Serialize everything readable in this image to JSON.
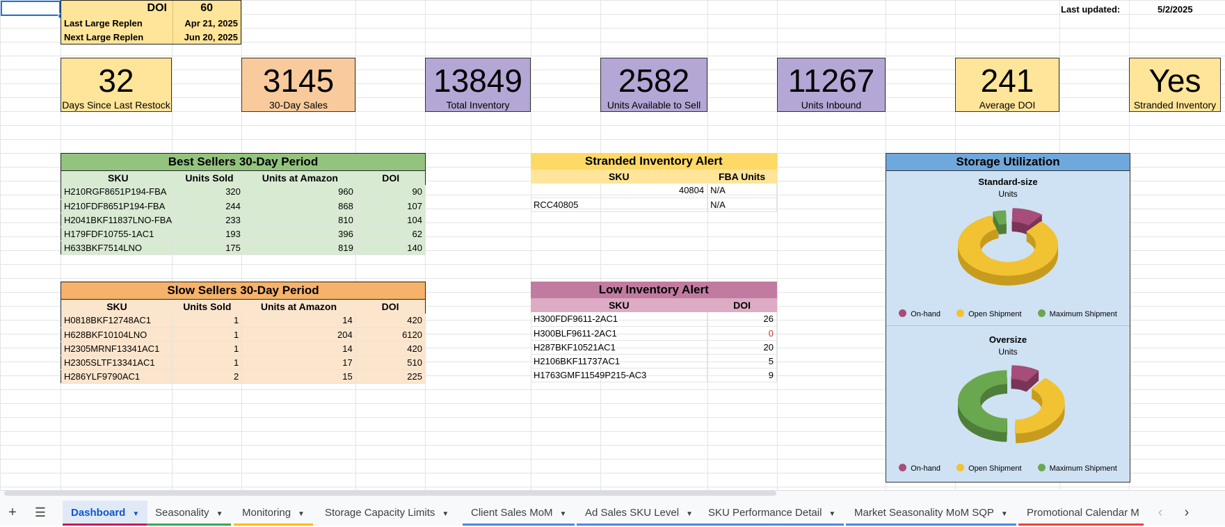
{
  "doi_box": {
    "doi_label": "DOI",
    "doi_value": "60",
    "last_label": "Last Large Replen",
    "last_value": "Apr 21, 2025",
    "next_label": "Next Large Replen",
    "next_value": "Jun 20, 2025"
  },
  "last_updated": {
    "label": "Last updated:",
    "value": "5/2/2025"
  },
  "kpis": [
    {
      "value": "32",
      "label": "Days Since Last Restock",
      "color": "#ffe599"
    },
    {
      "value": "3145",
      "label": "30-Day Sales",
      "color": "#f9cb9c"
    },
    {
      "value": "13849",
      "label": "Total Inventory",
      "color": "#b4a7d6"
    },
    {
      "value": "2582",
      "label": "Units Available to Sell",
      "color": "#b4a7d6"
    },
    {
      "value": "11267",
      "label": "Units Inbound",
      "color": "#b4a7d6"
    },
    {
      "value": "241",
      "label": "Average DOI",
      "color": "#ffe599"
    },
    {
      "value": "Yes",
      "label": "Stranded Inventory",
      "color": "#ffe599"
    }
  ],
  "best_sellers": {
    "title": "Best Sellers 30-Day Period",
    "headers": [
      "SKU",
      "Units Sold",
      "Units at Amazon",
      "DOI"
    ],
    "rows": [
      [
        "H210RGF8651P194-FBA",
        "320",
        "960",
        "90"
      ],
      [
        "H210FDF8651P194-FBA",
        "244",
        "868",
        "107"
      ],
      [
        "H2041BKF11837LNO-FBA",
        "233",
        "810",
        "104"
      ],
      [
        "H179FDF10755-1AC1",
        "193",
        "396",
        "62"
      ],
      [
        "H633BKF7514LNO",
        "175",
        "819",
        "140"
      ]
    ]
  },
  "slow_sellers": {
    "title": "Slow Sellers 30-Day Period",
    "headers": [
      "SKU",
      "Units Sold",
      "Units at Amazon",
      "DOI"
    ],
    "rows": [
      [
        "H0818BKF12748AC1",
        "1",
        "14",
        "420"
      ],
      [
        "H628BKF10104LNO",
        "1",
        "204",
        "6120"
      ],
      [
        "H2305MRNF13341AC1",
        "1",
        "14",
        "420"
      ],
      [
        "H2305SLTF13341AC1",
        "1",
        "17",
        "510"
      ],
      [
        "H286YLF9790AC1",
        "2",
        "15",
        "225"
      ]
    ]
  },
  "stranded": {
    "title": "Stranded Inventory Alert",
    "headers": [
      "SKU",
      "FBA Units"
    ],
    "rows": [
      [
        "40804",
        "N/A"
      ],
      [
        "RCC40805",
        "N/A"
      ]
    ]
  },
  "low_inventory": {
    "title": "Low Inventory Alert",
    "headers": [
      "SKU",
      "DOI"
    ],
    "rows": [
      [
        "H300FDF9611-2AC1",
        "26"
      ],
      [
        "H300BLF9611-2AC1",
        "0"
      ],
      [
        "H287BKF10521AC1",
        "20"
      ],
      [
        "H2106BKF11737AC1",
        "5"
      ],
      [
        "H1763GMF11549P215-AC3",
        "9"
      ]
    ]
  },
  "storage": {
    "title": "Storage Utilization",
    "legend": [
      "On-hand",
      "Open Shipment",
      "Maximum Shipment"
    ],
    "colors": [
      "#a64d79",
      "#f1c232",
      "#6aa84f"
    ]
  },
  "chart_data": [
    {
      "type": "pie",
      "title": "Standard-size",
      "subtitle": "Units",
      "categories": [
        "On-hand",
        "Open Shipment",
        "Maximum Shipment"
      ],
      "values": [
        11,
        84,
        5
      ]
    },
    {
      "type": "pie",
      "title": "Oversize",
      "subtitle": "Units",
      "categories": [
        "On-hand",
        "Open Shipment",
        "Maximum Shipment"
      ],
      "values": [
        10,
        40,
        50
      ]
    }
  ],
  "sheet_tabs": [
    {
      "label": "Dashboard",
      "color": "#c2185b"
    },
    {
      "label": "Seasonality",
      "color": "#34a853"
    },
    {
      "label": "Monitoring",
      "color": "#fbbc04"
    },
    {
      "label": "Storage Capacity Limits",
      "color": ""
    },
    {
      "label": "Client Sales MoM",
      "color": "#4a86e8"
    },
    {
      "label": "Ad Sales SKU Level",
      "color": "#4a86e8"
    },
    {
      "label": "SKU Performance Detail",
      "color": "#4a86e8"
    },
    {
      "label": "Market Seasonality MoM SQP",
      "color": "#4a86e8"
    },
    {
      "label": "Promotional Calendar M",
      "color": "#ea4335"
    }
  ],
  "sheet_icons": {
    "add": "plus-icon",
    "menu": "menu-icon",
    "prev": "chevron-left-icon",
    "next": "chevron-right-icon"
  }
}
